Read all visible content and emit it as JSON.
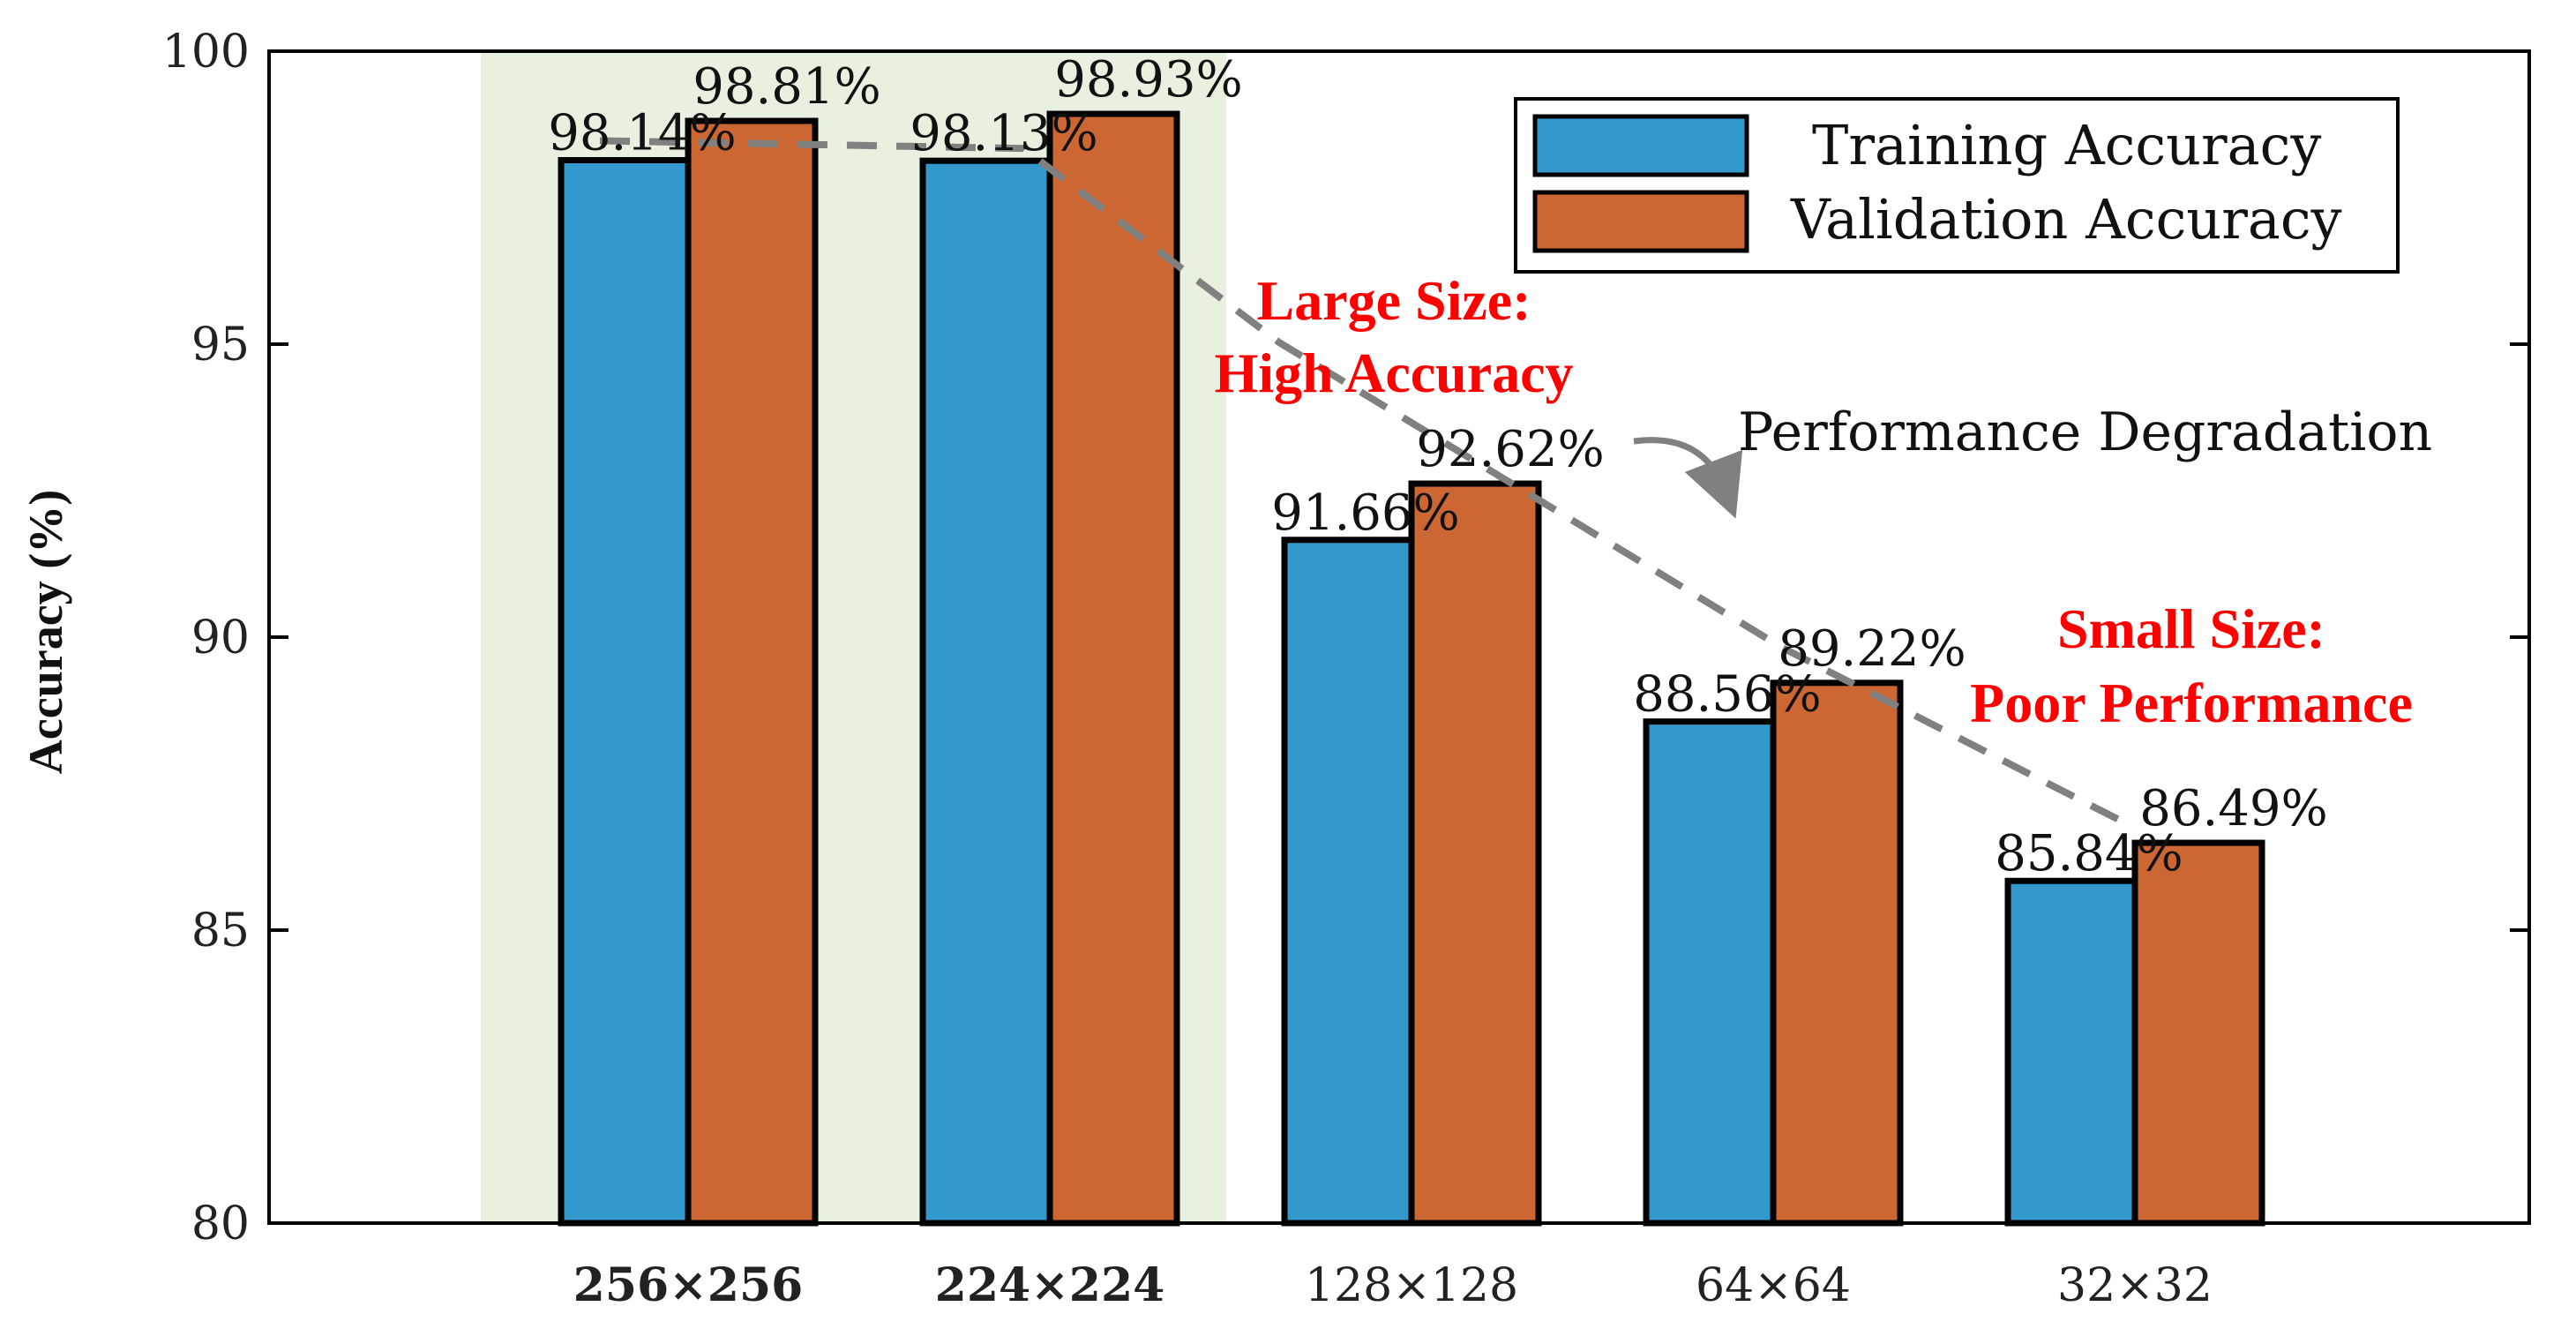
{
  "chart_data": {
    "type": "bar",
    "title": "",
    "xlabel": "",
    "ylabel": "Accuracy (%)",
    "ylim": [
      80,
      100
    ],
    "yticks": [
      "80",
      "85",
      "90",
      "95",
      "100"
    ],
    "categories": [
      "256×256",
      "224×224",
      "128×128",
      "64×64",
      "32×32"
    ],
    "bold_categories": [
      true,
      true,
      false,
      false,
      false
    ],
    "highlighted_categories": [
      "256×256",
      "224×224"
    ],
    "series": [
      {
        "name": "Training Accuracy",
        "color": "#3399CC",
        "values": [
          98.14,
          98.13,
          91.66,
          88.56,
          85.84
        ],
        "labels": [
          "98.14%",
          "98.13%",
          "91.66%",
          "88.56%",
          "85.84%"
        ]
      },
      {
        "name": "Validation Accuracy",
        "color": "#CC6633",
        "values": [
          98.81,
          98.93,
          92.62,
          89.22,
          86.49
        ],
        "labels": [
          "98.81%",
          "98.93%",
          "92.62%",
          "89.22%",
          "86.49%"
        ]
      }
    ],
    "trend_line": {
      "style": "dashed",
      "color": "#808080"
    },
    "legend": {
      "position": "top-right"
    },
    "annotations": {
      "large": {
        "line1": "Large Size:",
        "line2": "High Accuracy",
        "color": "#FF0000"
      },
      "small": {
        "line1": "Small Size:",
        "line2": "Poor Performance",
        "color": "#FF0000"
      },
      "degradation": {
        "text": "Performance Degradation"
      }
    },
    "colors": {
      "highlight_bg": "#E8F0DF",
      "axis": "#000000"
    }
  }
}
